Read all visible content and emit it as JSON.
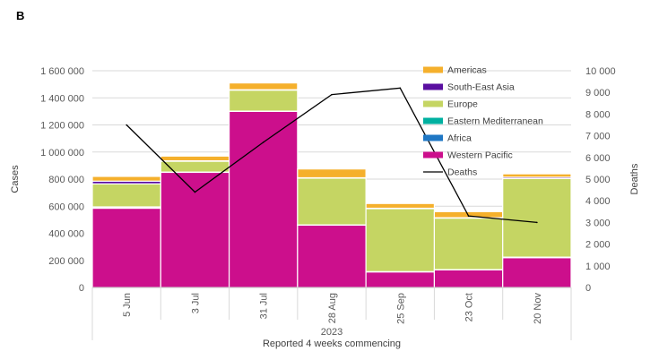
{
  "panel_label": "B",
  "chart_data": {
    "type": "bar",
    "stacked": true,
    "categories": [
      "5 Jun",
      "3 Jul",
      "31 Jul",
      "28 Aug",
      "25 Sep",
      "23 Oct",
      "20 Nov"
    ],
    "year_label": "2023",
    "xlabel": "Reported 4 weeks commencing",
    "ylabel": "Cases",
    "y2label": "Deaths",
    "ylim": [
      0,
      1600000
    ],
    "y2lim": [
      0,
      10000
    ],
    "y_ticks": [
      "0",
      "200 000",
      "400 000",
      "600 000",
      "800 000",
      "1 000 000",
      "1 200 000",
      "1 400 000",
      "1 600 000"
    ],
    "y2_ticks": [
      "0",
      "1 000",
      "2 000",
      "3 000",
      "4 000",
      "5 000",
      "6 000",
      "7 000",
      "8 000",
      "9 000",
      "10 000"
    ],
    "series": [
      {
        "name": "Western Pacific",
        "color": "#cc0f8c",
        "values": [
          585000,
          850000,
          1300000,
          460000,
          115000,
          130000,
          220000
        ]
      },
      {
        "name": "Africa",
        "color": "#1f77c4",
        "values": [
          5000,
          1000,
          1000,
          1000,
          1000,
          1000,
          2000
        ]
      },
      {
        "name": "Eastern Mediterranean",
        "color": "#00b0a0",
        "values": [
          5000,
          1000,
          1000,
          1000,
          1000,
          1000,
          2000
        ]
      },
      {
        "name": "Europe",
        "color": "#c5d563",
        "values": [
          170000,
          80000,
          155000,
          345000,
          465000,
          380000,
          580000
        ]
      },
      {
        "name": "South-East Asia",
        "color": "#5a0fa0",
        "values": [
          20000,
          3000,
          3000,
          3000,
          3000,
          3000,
          10000
        ]
      },
      {
        "name": "Americas",
        "color": "#f5b02c",
        "values": [
          35000,
          35000,
          50000,
          65000,
          35000,
          45000,
          25000
        ]
      }
    ],
    "line": {
      "name": "Deaths",
      "color": "#000000",
      "values": [
        7500,
        4400,
        6700,
        8900,
        9200,
        3300,
        3000
      ]
    },
    "legend_order": [
      "Americas",
      "South-East Asia",
      "Europe",
      "Eastern Mediterranean",
      "Africa",
      "Western Pacific",
      "Deaths"
    ],
    "legend_position": "right"
  }
}
